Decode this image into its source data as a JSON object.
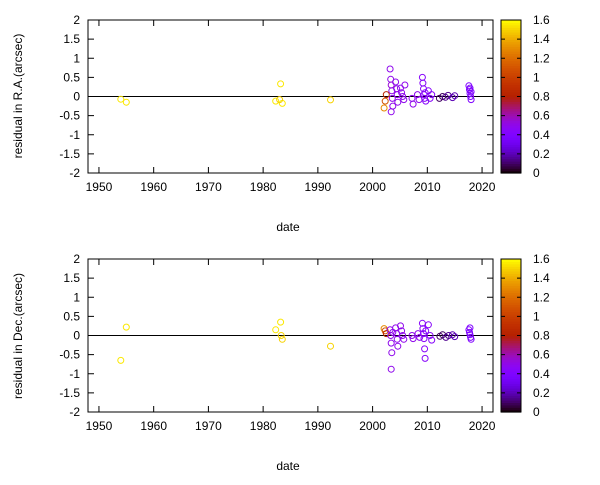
{
  "chart_data": [
    {
      "type": "scatter",
      "xlabel": "date",
      "ylabel": "residual in R.A.(arcsec)",
      "xlim": [
        1948,
        2022
      ],
      "ylim": [
        -2,
        2
      ],
      "x_ticks": [
        "1950",
        "1960",
        "1970",
        "1980",
        "1990",
        "2000",
        "2010",
        "2020"
      ],
      "y_ticks": [
        "2",
        "1.5",
        "1",
        "0.5",
        "0",
        "-0.5",
        "-1",
        "-1.5",
        "-2"
      ],
      "colorbar": {
        "min": 0,
        "max": 1.6,
        "ticks": [
          "1.6",
          "1.4",
          "1.2",
          "1",
          "0.8",
          "0.6",
          "0.4",
          "0.2",
          "0"
        ]
      },
      "grid": false,
      "zero_line": true,
      "points": [
        {
          "x": 1954.0,
          "y": -0.07,
          "c": 1.55
        },
        {
          "x": 1955.0,
          "y": -0.15,
          "c": 1.55
        },
        {
          "x": 1982.3,
          "y": -0.12,
          "c": 1.55
        },
        {
          "x": 1983.2,
          "y": 0.33,
          "c": 1.55
        },
        {
          "x": 1983.5,
          "y": -0.18,
          "c": 1.55
        },
        {
          "x": 1983.0,
          "y": -0.08,
          "c": 1.5
        },
        {
          "x": 1992.3,
          "y": -0.09,
          "c": 1.5
        },
        {
          "x": 2002.1,
          "y": -0.3,
          "c": 1.3
        },
        {
          "x": 2002.3,
          "y": -0.12,
          "c": 1.1
        },
        {
          "x": 2002.5,
          "y": 0.05,
          "c": 0.85
        },
        {
          "x": 2003.2,
          "y": 0.72,
          "c": 0.5
        },
        {
          "x": 2003.3,
          "y": 0.45,
          "c": 0.5
        },
        {
          "x": 2003.4,
          "y": 0.3,
          "c": 0.55
        },
        {
          "x": 2003.5,
          "y": 0.15,
          "c": 0.5
        },
        {
          "x": 2003.6,
          "y": -0.05,
          "c": 0.5
        },
        {
          "x": 2003.7,
          "y": -0.25,
          "c": 0.5
        },
        {
          "x": 2003.4,
          "y": -0.4,
          "c": 0.5
        },
        {
          "x": 2004.2,
          "y": 0.38,
          "c": 0.5
        },
        {
          "x": 2004.4,
          "y": 0.2,
          "c": 0.5
        },
        {
          "x": 2004.5,
          "y": 0.05,
          "c": 0.5
        },
        {
          "x": 2004.6,
          "y": -0.15,
          "c": 0.5
        },
        {
          "x": 2005.1,
          "y": 0.22,
          "c": 0.5
        },
        {
          "x": 2005.3,
          "y": 0.1,
          "c": 0.5
        },
        {
          "x": 2005.5,
          "y": 0.0,
          "c": 0.5
        },
        {
          "x": 2005.7,
          "y": -0.08,
          "c": 0.5
        },
        {
          "x": 2005.9,
          "y": 0.3,
          "c": 0.5
        },
        {
          "x": 2007.2,
          "y": -0.05,
          "c": 0.5
        },
        {
          "x": 2007.4,
          "y": -0.2,
          "c": 0.5
        },
        {
          "x": 2008.2,
          "y": 0.05,
          "c": 0.5
        },
        {
          "x": 2008.5,
          "y": -0.08,
          "c": 0.5
        },
        {
          "x": 2009.1,
          "y": 0.5,
          "c": 0.45
        },
        {
          "x": 2009.2,
          "y": 0.35,
          "c": 0.45
        },
        {
          "x": 2009.3,
          "y": 0.2,
          "c": 0.45
        },
        {
          "x": 2009.4,
          "y": 0.05,
          "c": 0.45
        },
        {
          "x": 2009.5,
          "y": -0.05,
          "c": 0.45
        },
        {
          "x": 2009.6,
          "y": 0.1,
          "c": 0.45
        },
        {
          "x": 2009.7,
          "y": -0.12,
          "c": 0.45
        },
        {
          "x": 2010.2,
          "y": 0.15,
          "c": 0.45
        },
        {
          "x": 2010.5,
          "y": -0.05,
          "c": 0.45
        },
        {
          "x": 2010.8,
          "y": 0.05,
          "c": 0.45
        },
        {
          "x": 2012.2,
          "y": -0.05,
          "c": 0.1
        },
        {
          "x": 2012.8,
          "y": 0.0,
          "c": 0.1
        },
        {
          "x": 2013.3,
          "y": -0.02,
          "c": 0.15
        },
        {
          "x": 2013.8,
          "y": 0.03,
          "c": 0.15
        },
        {
          "x": 2014.6,
          "y": -0.03,
          "c": 0.2
        },
        {
          "x": 2015.0,
          "y": 0.02,
          "c": 0.2
        },
        {
          "x": 2017.6,
          "y": 0.28,
          "c": 0.4
        },
        {
          "x": 2017.7,
          "y": 0.18,
          "c": 0.4
        },
        {
          "x": 2017.8,
          "y": 0.08,
          "c": 0.4
        },
        {
          "x": 2017.9,
          "y": 0.0,
          "c": 0.4
        },
        {
          "x": 2018.0,
          "y": -0.08,
          "c": 0.4
        },
        {
          "x": 2017.8,
          "y": 0.22,
          "c": 0.4
        },
        {
          "x": 2018.0,
          "y": 0.12,
          "c": 0.4
        }
      ]
    },
    {
      "type": "scatter",
      "xlabel": "date",
      "ylabel": "residual in Dec.(arcsec)",
      "xlim": [
        1948,
        2022
      ],
      "ylim": [
        -2,
        2
      ],
      "x_ticks": [
        "1950",
        "1960",
        "1970",
        "1980",
        "1990",
        "2000",
        "2010",
        "2020"
      ],
      "y_ticks": [
        "2",
        "1.5",
        "1",
        "0.5",
        "0",
        "-0.5",
        "-1",
        "-1.5",
        "-2"
      ],
      "colorbar": {
        "min": 0,
        "max": 1.6,
        "ticks": [
          "1.6",
          "1.4",
          "1.2",
          "1",
          "0.8",
          "0.6",
          "0.4",
          "0.2",
          "0"
        ]
      },
      "grid": false,
      "zero_line": true,
      "points": [
        {
          "x": 1954.0,
          "y": -0.65,
          "c": 1.55
        },
        {
          "x": 1955.0,
          "y": 0.22,
          "c": 1.55
        },
        {
          "x": 1982.3,
          "y": 0.15,
          "c": 1.55
        },
        {
          "x": 1983.2,
          "y": 0.35,
          "c": 1.55
        },
        {
          "x": 1983.3,
          "y": 0.0,
          "c": 1.5
        },
        {
          "x": 1983.5,
          "y": -0.1,
          "c": 1.5
        },
        {
          "x": 1992.3,
          "y": -0.28,
          "c": 1.5
        },
        {
          "x": 2002.1,
          "y": 0.18,
          "c": 1.3
        },
        {
          "x": 2002.3,
          "y": 0.12,
          "c": 1.1
        },
        {
          "x": 2002.5,
          "y": 0.05,
          "c": 0.85
        },
        {
          "x": 2003.2,
          "y": 0.15,
          "c": 0.5
        },
        {
          "x": 2003.3,
          "y": 0.0,
          "c": 0.5
        },
        {
          "x": 2003.4,
          "y": -0.2,
          "c": 0.5
        },
        {
          "x": 2003.5,
          "y": -0.45,
          "c": 0.5
        },
        {
          "x": 2003.4,
          "y": -0.88,
          "c": 0.5
        },
        {
          "x": 2003.7,
          "y": 0.08,
          "c": 0.5
        },
        {
          "x": 2004.2,
          "y": 0.2,
          "c": 0.5
        },
        {
          "x": 2004.4,
          "y": 0.05,
          "c": 0.5
        },
        {
          "x": 2004.5,
          "y": -0.1,
          "c": 0.5
        },
        {
          "x": 2004.6,
          "y": -0.28,
          "c": 0.5
        },
        {
          "x": 2005.1,
          "y": 0.25,
          "c": 0.5
        },
        {
          "x": 2005.3,
          "y": 0.12,
          "c": 0.5
        },
        {
          "x": 2005.5,
          "y": 0.0,
          "c": 0.5
        },
        {
          "x": 2005.7,
          "y": -0.1,
          "c": 0.5
        },
        {
          "x": 2007.2,
          "y": 0.0,
          "c": 0.5
        },
        {
          "x": 2007.4,
          "y": -0.08,
          "c": 0.5
        },
        {
          "x": 2008.3,
          "y": 0.05,
          "c": 0.5
        },
        {
          "x": 2008.6,
          "y": -0.05,
          "c": 0.5
        },
        {
          "x": 2009.1,
          "y": 0.32,
          "c": 0.45
        },
        {
          "x": 2009.2,
          "y": 0.18,
          "c": 0.45
        },
        {
          "x": 2009.3,
          "y": 0.05,
          "c": 0.45
        },
        {
          "x": 2009.4,
          "y": -0.08,
          "c": 0.45
        },
        {
          "x": 2009.5,
          "y": -0.35,
          "c": 0.45
        },
        {
          "x": 2009.6,
          "y": -0.6,
          "c": 0.45
        },
        {
          "x": 2009.7,
          "y": 0.12,
          "c": 0.45
        },
        {
          "x": 2010.2,
          "y": 0.28,
          "c": 0.45
        },
        {
          "x": 2010.5,
          "y": 0.0,
          "c": 0.45
        },
        {
          "x": 2010.8,
          "y": -0.12,
          "c": 0.45
        },
        {
          "x": 2012.3,
          "y": -0.02,
          "c": 0.1
        },
        {
          "x": 2012.8,
          "y": 0.02,
          "c": 0.1
        },
        {
          "x": 2013.4,
          "y": -0.05,
          "c": 0.15
        },
        {
          "x": 2013.9,
          "y": 0.0,
          "c": 0.15
        },
        {
          "x": 2014.6,
          "y": 0.02,
          "c": 0.2
        },
        {
          "x": 2015.0,
          "y": -0.03,
          "c": 0.2
        },
        {
          "x": 2017.6,
          "y": 0.15,
          "c": 0.4
        },
        {
          "x": 2017.7,
          "y": 0.08,
          "c": 0.4
        },
        {
          "x": 2017.8,
          "y": 0.02,
          "c": 0.4
        },
        {
          "x": 2017.9,
          "y": -0.05,
          "c": 0.4
        },
        {
          "x": 2018.0,
          "y": -0.1,
          "c": 0.4
        },
        {
          "x": 2017.8,
          "y": 0.2,
          "c": 0.4
        }
      ]
    }
  ]
}
